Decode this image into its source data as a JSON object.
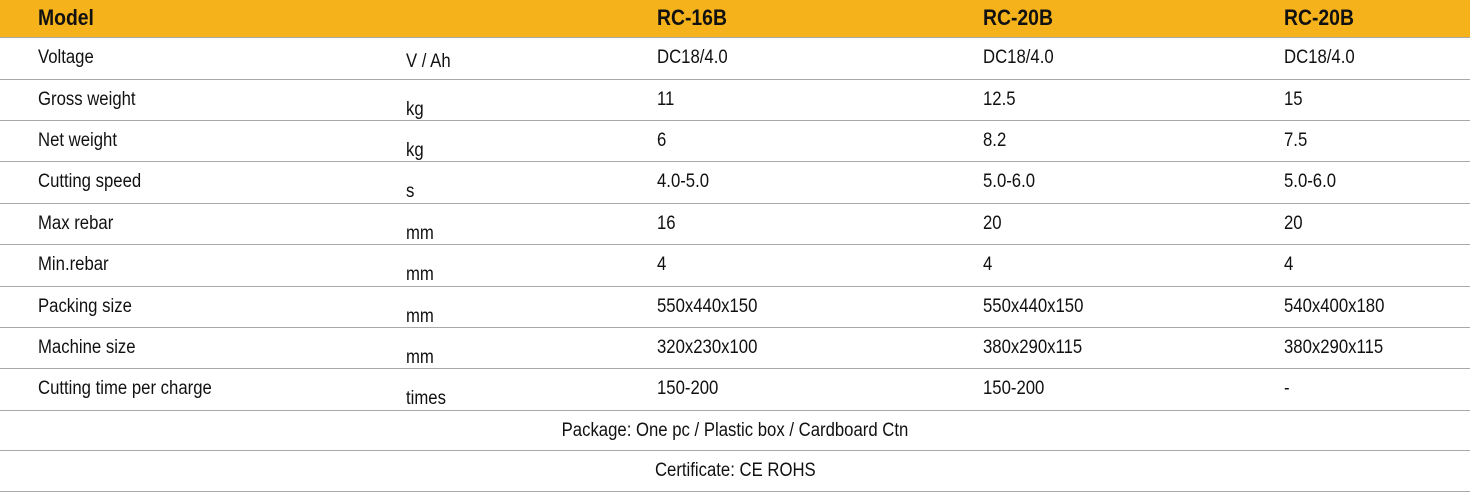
{
  "header": {
    "model_label": "Model",
    "models": [
      "RC-16B",
      "RC-20B",
      "RC-20B"
    ]
  },
  "rows": [
    {
      "label": "Voltage",
      "unit": "V / Ah",
      "values": [
        "DC18/4.0",
        "DC18/4.0",
        "DC18/4.0"
      ]
    },
    {
      "label": "Gross weight",
      "unit": "kg",
      "values": [
        "11",
        "12.5",
        "15"
      ]
    },
    {
      "label": "Net weight",
      "unit": "kg",
      "values": [
        "6",
        "8.2",
        "7.5"
      ]
    },
    {
      "label": "Cutting speed",
      "unit": "s",
      "values": [
        "4.0-5.0",
        "5.0-6.0",
        "5.0-6.0"
      ]
    },
    {
      "label": "Max rebar",
      "unit": "mm",
      "values": [
        "16",
        "20",
        "20"
      ]
    },
    {
      "label": "Min.rebar",
      "unit": "mm",
      "values": [
        "4",
        "4",
        "4"
      ]
    },
    {
      "label": "Packing size",
      "unit": "mm",
      "values": [
        "550x440x150",
        "550x440x150",
        "540x400x180"
      ]
    },
    {
      "label": "Machine size",
      "unit": "mm",
      "values": [
        "320x230x100",
        "380x290x115",
        "380x290x115"
      ]
    },
    {
      "label": "Cutting time per charge",
      "unit": "times",
      "values": [
        "150-200",
        "150-200",
        "-"
      ]
    }
  ],
  "footer": {
    "package": "Package: One pc / Plastic box / Cardboard Ctn",
    "certificate": "Certificate: CE ROHS"
  },
  "colors": {
    "header_background": "#f5b21b",
    "row_divider": "#a9a9a9"
  }
}
